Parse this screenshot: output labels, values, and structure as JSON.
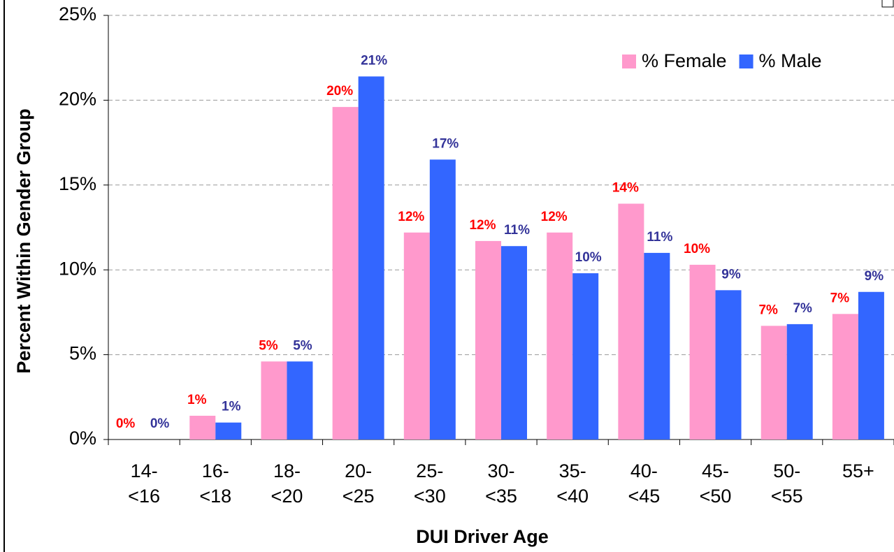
{
  "chart_data": {
    "type": "bar",
    "x_label": "DUI Driver Age",
    "y_label": "Percent Within Gender Group",
    "categories": [
      "14-<16",
      "16-<18",
      "18-<20",
      "20-<25",
      "25-<30",
      "30-<35",
      "35-<40",
      "40-<45",
      "45-<50",
      "50-<55",
      "55+"
    ],
    "series": [
      {
        "name": "% Female",
        "color": "#ff99cc",
        "label_color": "#ff0000",
        "values": [
          0,
          1.4,
          4.6,
          19.6,
          12.2,
          11.7,
          12.2,
          13.9,
          10.3,
          6.7,
          7.4
        ],
        "value_labels": [
          "0%",
          "1%",
          "5%",
          "20%",
          "12%",
          "12%",
          "12%",
          "14%",
          "10%",
          "7%",
          "7%"
        ]
      },
      {
        "name": "% Male",
        "color": "#3366ff",
        "label_color": "#333399",
        "values": [
          0,
          1.0,
          4.6,
          21.4,
          16.5,
          11.4,
          9.8,
          11.0,
          8.8,
          6.8,
          8.7
        ],
        "value_labels": [
          "0%",
          "1%",
          "5%",
          "21%",
          "17%",
          "11%",
          "10%",
          "11%",
          "9%",
          "7%",
          "9%"
        ]
      }
    ],
    "ylim": [
      0,
      25
    ],
    "yticks": [
      {
        "value": 0,
        "label": "0%"
      },
      {
        "value": 5,
        "label": "5%"
      },
      {
        "value": 10,
        "label": "10%"
      },
      {
        "value": 15,
        "label": "15%"
      },
      {
        "value": 20,
        "label": "20%"
      },
      {
        "value": 25,
        "label": "25%"
      }
    ],
    "grid": true,
    "legend": "top-right"
  }
}
